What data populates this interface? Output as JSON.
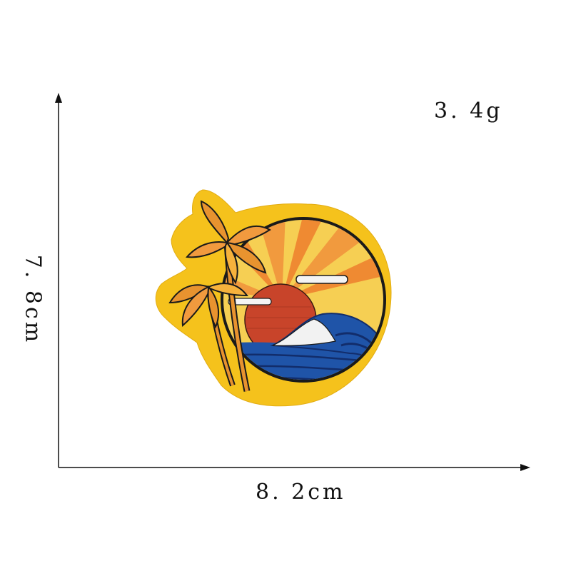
{
  "measurements": {
    "weight": "3. 4g",
    "width": "8. 2cm",
    "height": "7. 8cm"
  },
  "patch": {
    "subject": "embroidered sunset beach patch",
    "icons": [
      "palm-tree-icon",
      "sun-icon",
      "wave-icon",
      "cloud-icon"
    ]
  },
  "colors": {
    "border_yellow": "#f5c21c",
    "outline": "#1a1a1a",
    "sun_red": "#c8442a",
    "sky_orange": "#f19a3e",
    "sky_yellow": "#f6cf53",
    "sea_blue": "#1f54a8",
    "sea_dark": "#122d6b",
    "foam_white": "#f2f2f2",
    "palm_orange": "#e8932f"
  }
}
